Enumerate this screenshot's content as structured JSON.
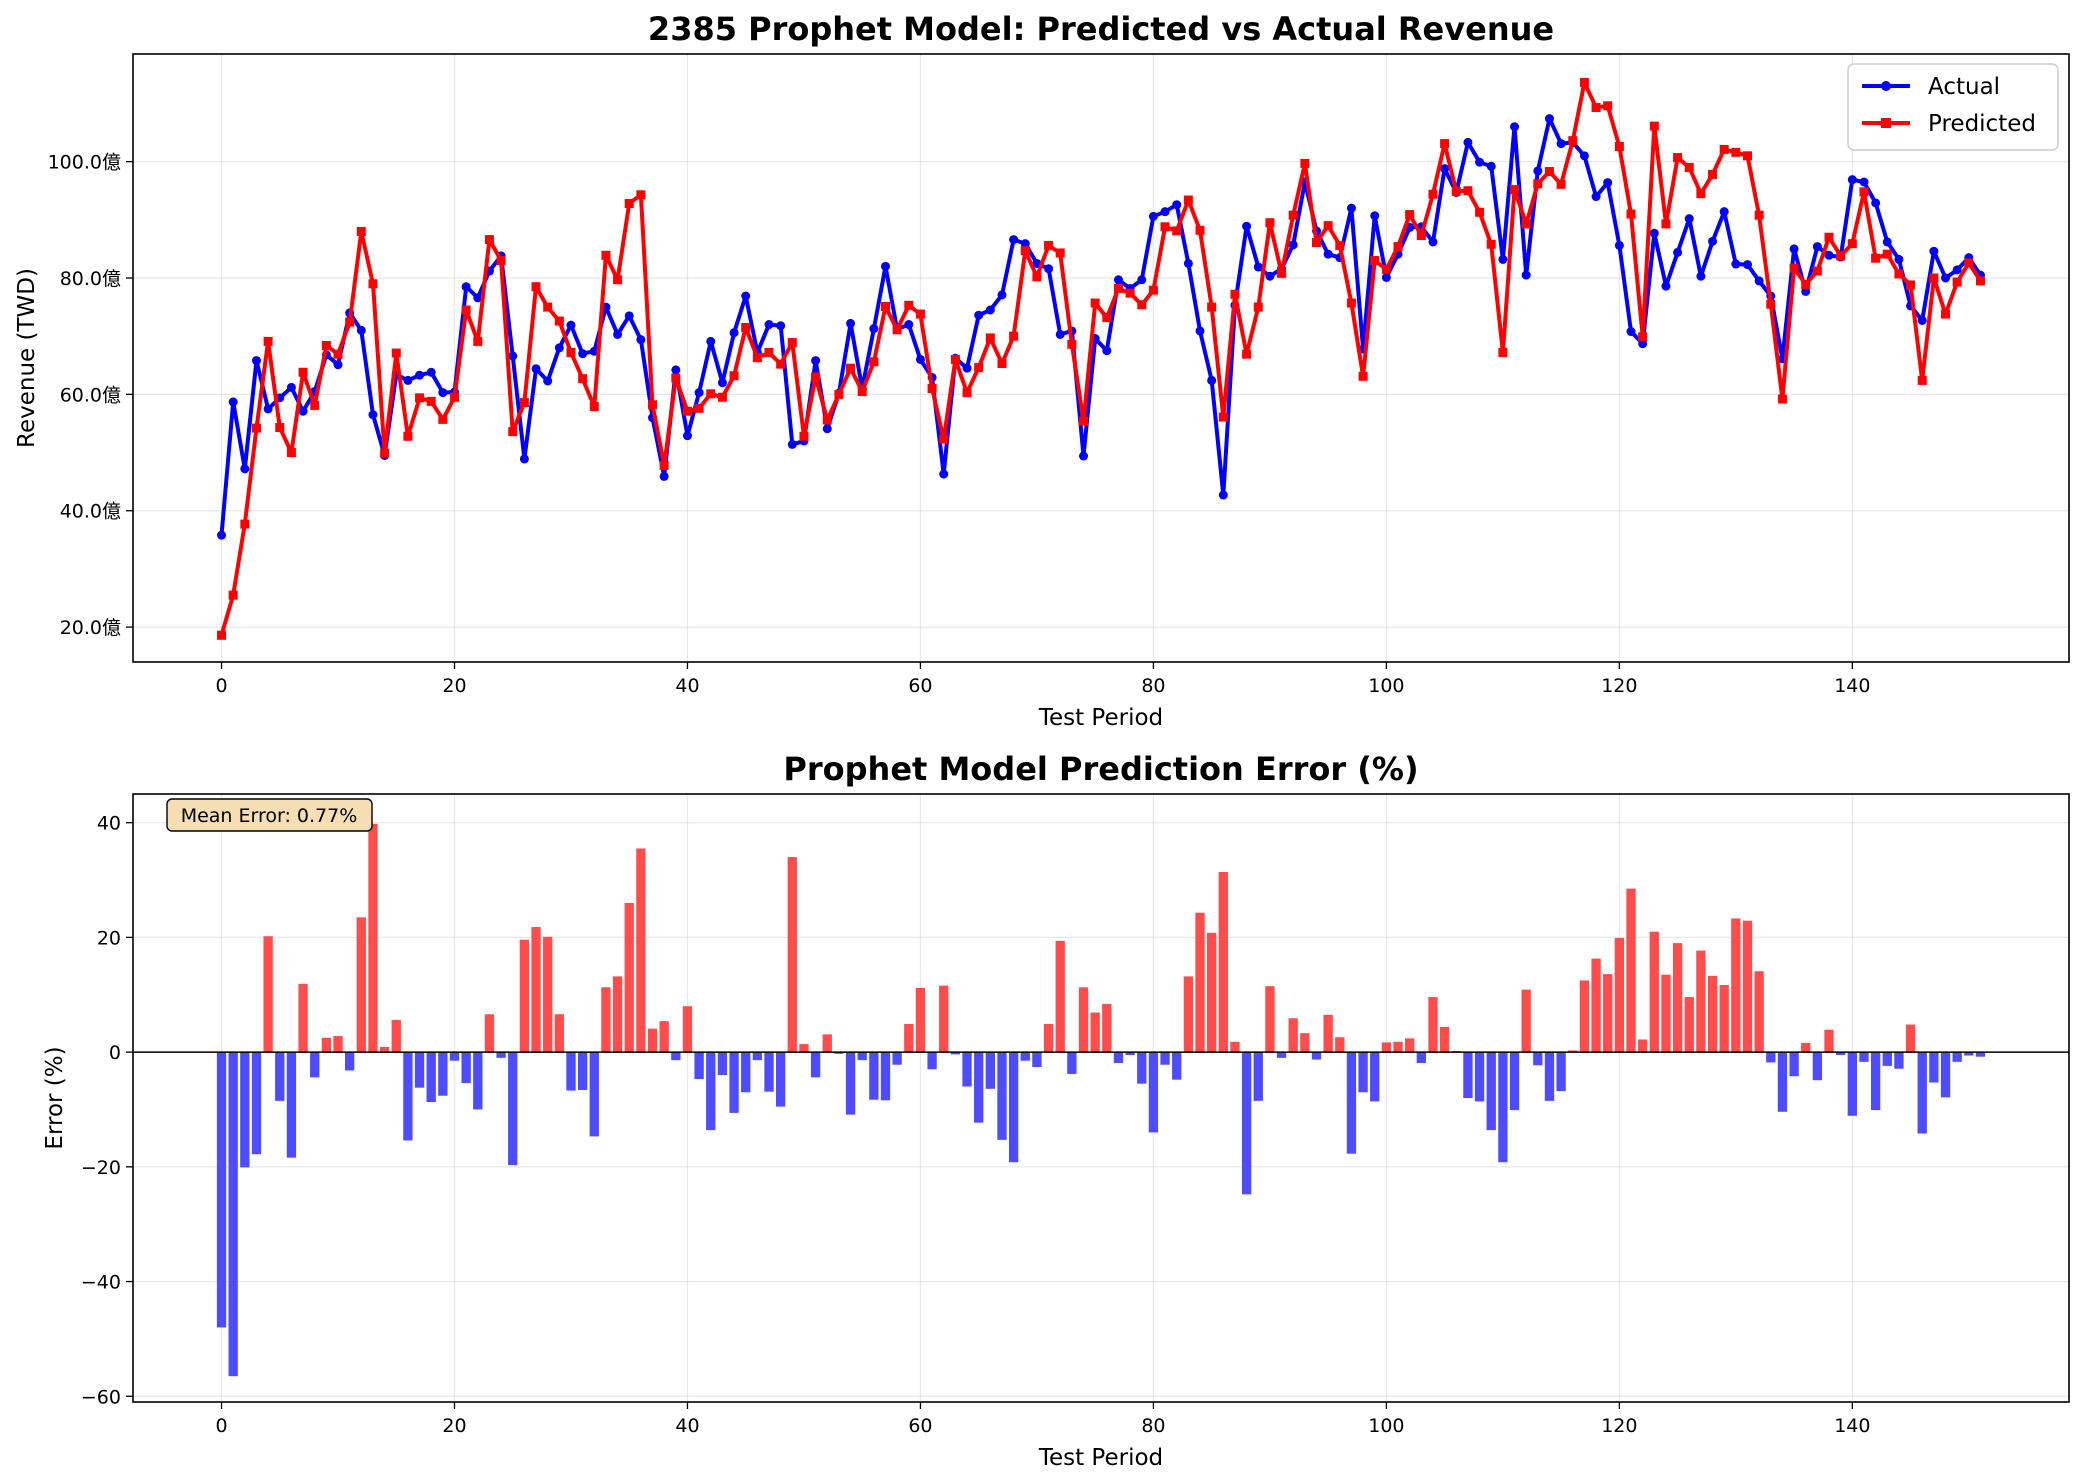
{
  "chart_data": [
    {
      "type": "line",
      "title": "2385 Prophet Model: Predicted vs Actual Revenue",
      "xlabel": "Test Period",
      "ylabel": "Revenue (TWD)",
      "xlim": [
        -7.6,
        158.6
      ],
      "ylim": [
        14.0,
        118.5
      ],
      "xticks": [
        0,
        20,
        40,
        60,
        80,
        100,
        120,
        140
      ],
      "xtick_labels": [
        "0",
        "20",
        "40",
        "60",
        "80",
        "100",
        "120",
        "140"
      ],
      "yticks": [
        20,
        40,
        60,
        80,
        100
      ],
      "ytick_labels": [
        "20.0億",
        "40.0億",
        "60.0億",
        "80.0億",
        "100.0億"
      ],
      "grid": true,
      "legend_position": "upper-right",
      "series": [
        {
          "name": "Actual",
          "color": "#0000ff",
          "marker": "circle",
          "values": [
            35.8,
            58.7,
            47.2,
            65.8,
            57.5,
            59.4,
            61.2,
            57.1,
            60.5,
            66.8,
            65.1,
            74.0,
            71.0,
            56.5,
            49.5,
            63.4,
            62.4,
            63.3,
            63.8,
            60.3,
            60.4,
            78.5,
            76.6,
            81.2,
            83.8,
            66.6,
            48.9,
            64.4,
            62.3,
            68.0,
            71.9,
            67.0,
            67.4,
            75.0,
            70.3,
            73.5,
            69.4,
            56.0,
            45.9,
            64.2,
            52.9,
            60.3,
            69.1,
            62.0,
            70.6,
            76.9,
            67.2,
            72.0,
            71.8,
            51.4,
            52.0,
            65.8,
            54.1,
            60.2,
            72.2,
            61.0,
            71.3,
            82.0,
            71.2,
            72.0,
            66.0,
            62.9,
            46.3,
            66.2,
            64.5,
            73.6,
            74.5,
            77.1,
            86.6,
            85.9,
            82.5,
            81.6,
            70.3,
            70.9,
            49.4,
            69.6,
            67.5,
            79.7,
            78.2,
            79.7,
            90.6,
            91.4,
            92.6,
            82.5,
            70.9,
            62.4,
            42.7,
            75.3,
            88.9,
            81.9,
            80.3,
            81.6,
            85.7,
            96.5,
            88.1,
            84.1,
            83.5,
            92.0,
            67.8,
            90.7,
            80.1,
            84.1,
            88.7,
            88.8,
            86.2,
            98.8,
            94.7,
            103.3,
            99.9,
            99.2,
            83.2,
            106.0,
            80.5,
            98.4,
            107.4,
            103.1,
            103.3,
            101.0,
            94.0,
            96.4,
            85.6,
            70.8,
            68.7,
            87.7,
            78.6,
            84.4,
            90.2,
            80.3,
            86.3,
            91.4,
            82.4,
            82.3,
            79.5,
            76.9,
            66.1,
            85.0,
            77.7,
            85.4,
            83.9,
            83.6,
            96.9,
            96.5,
            92.9,
            86.2,
            83.2,
            75.2,
            72.7,
            84.6,
            80.0,
            81.4,
            83.5,
            80.5
          ]
        },
        {
          "name": "Predicted",
          "color": "#ff0000",
          "marker": "square",
          "values": [
            18.6,
            25.5,
            37.7,
            54.2,
            69.1,
            54.3,
            50.0,
            63.8,
            58.1,
            68.4,
            66.9,
            72.4,
            88.0,
            79.0,
            49.9,
            67.1,
            52.8,
            59.4,
            58.8,
            55.7,
            59.5,
            74.5,
            69.1,
            86.6,
            83.0,
            53.6,
            58.6,
            78.5,
            75.0,
            72.6,
            67.2,
            62.7,
            57.9,
            83.9,
            79.7,
            92.8,
            94.3,
            58.2,
            47.8,
            62.8,
            57.1,
            57.6,
            60.1,
            59.5,
            63.2,
            71.5,
            66.3,
            67.2,
            65.2,
            68.9,
            52.8,
            63.0,
            55.6,
            60.0,
            64.5,
            60.5,
            65.6,
            75.1,
            71.1,
            75.3,
            73.8,
            61.0,
            52.3,
            66.0,
            60.3,
            64.6,
            69.7,
            65.3,
            70.0,
            84.7,
            80.2,
            85.6,
            84.3,
            68.6,
            55.4,
            75.7,
            73.2,
            78.2,
            77.4,
            75.4,
            77.9,
            88.8,
            88.1,
            93.4,
            88.2,
            75.0,
            56.1,
            77.2,
            66.9,
            75.0,
            89.5,
            80.8,
            90.8,
            99.7,
            86.1,
            89.0,
            85.6,
            75.7,
            63.1,
            83.0,
            81.5,
            85.4,
            90.9,
            87.3,
            94.4,
            103.1,
            94.9,
            95.0,
            91.3,
            85.8,
            67.2,
            95.2,
            89.3,
            96.2,
            98.3,
            96.1,
            103.6,
            113.6,
            109.3,
            109.6,
            102.6,
            91.0,
            69.9,
            106.1,
            89.3,
            100.7,
            99.0,
            94.5,
            97.8,
            102.1,
            101.6,
            101.0,
            90.8,
            75.5,
            59.2,
            81.7,
            78.9,
            81.2,
            87.0,
            83.8,
            85.9,
            94.8,
            83.4,
            84.1,
            80.7,
            78.8,
            62.4,
            80.0,
            73.8,
            79.3,
            82.6,
            79.5
          ]
        }
      ]
    },
    {
      "type": "bar",
      "title": "Prophet Model Prediction Error (%)",
      "xlabel": "Test Period",
      "ylabel": "Error (%)",
      "xlim": [
        -7.6,
        158.6
      ],
      "ylim": [
        -61.0,
        45.0
      ],
      "xticks": [
        0,
        20,
        40,
        60,
        80,
        100,
        120,
        140
      ],
      "xtick_labels": [
        "0",
        "20",
        "40",
        "60",
        "80",
        "100",
        "120",
        "140"
      ],
      "yticks": [
        -60,
        -40,
        -20,
        0,
        20,
        40
      ],
      "ytick_labels": [
        "−60",
        "−40",
        "−20",
        "0",
        "20",
        "40"
      ],
      "grid": true,
      "positive_color": "#ff4d4d",
      "negative_color": "#4d4dff",
      "annotation": "Mean Error: 0.77%",
      "values": [
        -48.0,
        -56.5,
        -20.1,
        -17.8,
        20.2,
        -8.5,
        -18.4,
        11.9,
        -4.4,
        2.5,
        2.8,
        -3.2,
        23.5,
        39.8,
        0.9,
        5.6,
        -15.4,
        -6.2,
        -8.7,
        -7.6,
        -1.5,
        -5.4,
        -10.0,
        6.6,
        -1.0,
        -19.7,
        19.6,
        21.8,
        20.1,
        6.6,
        -6.7,
        -6.6,
        -14.7,
        11.3,
        13.2,
        26.0,
        35.5,
        4.1,
        5.4,
        -1.4,
        8.0,
        -4.7,
        -13.6,
        -4.0,
        -10.6,
        -7.0,
        -1.4,
        -6.9,
        -9.5,
        34.0,
        1.4,
        -4.4,
        3.1,
        -0.3,
        -10.9,
        -1.4,
        -8.3,
        -8.4,
        -2.2,
        4.9,
        11.2,
        -3.0,
        11.6,
        -0.4,
        -6.0,
        -12.3,
        -6.4,
        -15.3,
        -19.2,
        -1.5,
        -2.6,
        4.9,
        19.4,
        -3.8,
        11.3,
        6.9,
        8.4,
        -1.9,
        -0.5,
        -5.5,
        -14.0,
        -2.2,
        -4.8,
        13.2,
        24.3,
        20.8,
        31.4,
        1.8,
        -24.8,
        -8.5,
        11.5,
        -1.0,
        5.9,
        3.3,
        -1.3,
        6.5,
        2.6,
        -17.7,
        -7.0,
        -8.6,
        1.7,
        1.8,
        2.4,
        -1.9,
        9.6,
        4.4,
        0.2,
        -8.0,
        -8.6,
        -13.6,
        -19.2,
        -10.1,
        10.9,
        -2.3,
        -8.5,
        -6.8,
        0.3,
        12.5,
        16.3,
        13.6,
        19.9,
        28.5,
        2.2,
        21.0,
        13.5,
        19.0,
        9.6,
        17.7,
        13.3,
        11.7,
        23.3,
        22.9,
        14.1,
        -1.8,
        -10.4,
        -4.2,
        1.6,
        -4.9,
        3.9,
        -0.5,
        -11.1,
        -1.7,
        -10.1,
        -2.4,
        -2.9,
        4.8,
        -14.2,
        -5.3,
        -7.9,
        -1.7,
        -0.6,
        -0.8
      ]
    }
  ]
}
